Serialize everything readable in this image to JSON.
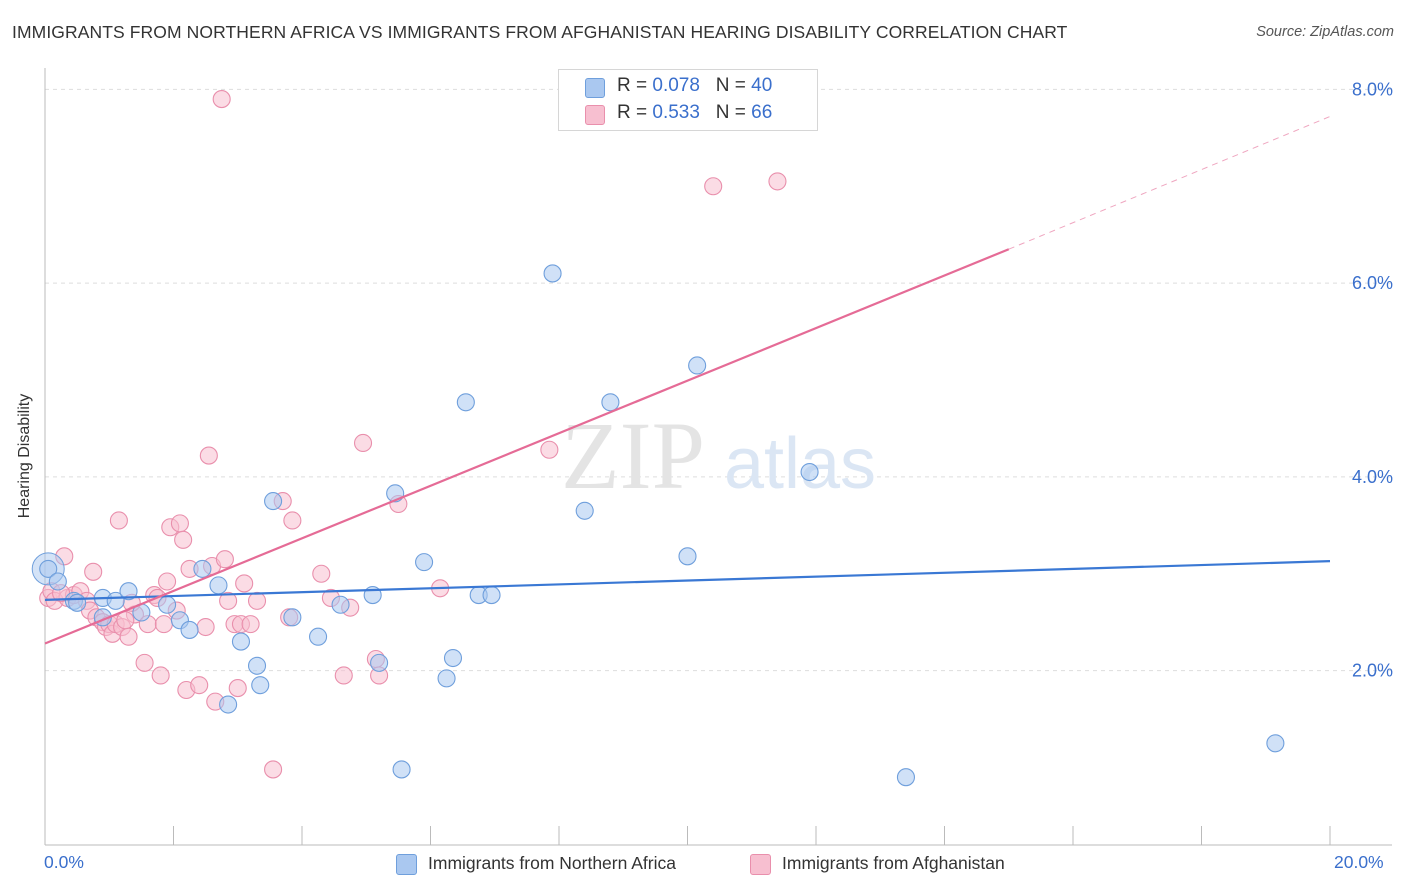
{
  "title": "IMMIGRANTS FROM NORTHERN AFRICA VS IMMIGRANTS FROM AFGHANISTAN HEARING DISABILITY CORRELATION CHART",
  "source": "Source: ZipAtlas.com",
  "watermark": {
    "zip": "ZIP",
    "atlas": "atlas"
  },
  "colors": {
    "blue_fill": "#aac8f0",
    "blue_stroke": "#6f9fdc",
    "blue_line": "#3a78d4",
    "pink_fill": "#f7bfd0",
    "pink_stroke": "#e98fac",
    "pink_line": "#e56b96",
    "axis_text": "#3a6fcc",
    "grid": "#dddddd"
  },
  "legend": {
    "blue": {
      "r_label": "R = ",
      "r_value": "0.078",
      "n_label": "N = ",
      "n_value": "40"
    },
    "pink": {
      "r_label": "R = ",
      "r_value": "0.533",
      "n_label": "N = ",
      "n_value": "66"
    }
  },
  "chart_data": {
    "type": "scatter",
    "title": "IMMIGRANTS FROM NORTHERN AFRICA VS IMMIGRANTS FROM AFGHANISTAN HEARING DISABILITY CORRELATION CHART",
    "xlabel": "",
    "ylabel": "Hearing Disability",
    "xlim": [
      0,
      20
    ],
    "ylim": [
      0.2,
      8.2
    ],
    "x_tick_labels": [
      "0.0%",
      "20.0%"
    ],
    "y_ticks": [
      2,
      4,
      6,
      8
    ],
    "y_tick_labels": [
      "2.0%",
      "4.0%",
      "6.0%",
      "8.0%"
    ],
    "series": [
      {
        "name": "Immigrants from Northern Africa",
        "color": "blue",
        "trend": {
          "x0": 0,
          "y0": 2.73,
          "x1": 20,
          "y1": 3.13
        },
        "points": [
          [
            0.05,
            3.05
          ],
          [
            0.2,
            2.92
          ],
          [
            0.45,
            2.72
          ],
          [
            0.9,
            2.75
          ],
          [
            1.1,
            2.72
          ],
          [
            1.3,
            2.82
          ],
          [
            0.9,
            2.55
          ],
          [
            1.5,
            2.6
          ],
          [
            1.9,
            2.68
          ],
          [
            2.1,
            2.52
          ],
          [
            2.25,
            2.42
          ],
          [
            2.45,
            3.05
          ],
          [
            2.7,
            2.88
          ],
          [
            2.85,
            1.65
          ],
          [
            3.05,
            2.3
          ],
          [
            3.3,
            2.05
          ],
          [
            3.35,
            1.85
          ],
          [
            3.55,
            3.75
          ],
          [
            3.85,
            2.55
          ],
          [
            4.25,
            2.35
          ],
          [
            4.6,
            2.68
          ],
          [
            5.1,
            2.78
          ],
          [
            5.2,
            2.08
          ],
          [
            5.45,
            3.83
          ],
          [
            5.55,
            0.98
          ],
          [
            5.9,
            3.12
          ],
          [
            6.25,
            1.92
          ],
          [
            6.35,
            2.13
          ],
          [
            6.55,
            4.77
          ],
          [
            6.75,
            2.78
          ],
          [
            6.95,
            2.78
          ],
          [
            7.9,
            6.1
          ],
          [
            8.4,
            3.65
          ],
          [
            8.8,
            4.77
          ],
          [
            10.0,
            3.18
          ],
          [
            10.15,
            5.15
          ],
          [
            11.9,
            4.05
          ],
          [
            13.4,
            0.9
          ],
          [
            19.15,
            1.25
          ],
          [
            0.5,
            2.7
          ]
        ]
      },
      {
        "name": "Immigrants from Afghanistan",
        "color": "pink",
        "trend": {
          "x0": 0,
          "y0": 2.28,
          "x1": 15.0,
          "y1": 6.35
        },
        "trend_dashed": {
          "x0": 15.0,
          "y0": 6.35,
          "x1": 20,
          "y1": 7.72
        },
        "points": [
          [
            0.05,
            2.75
          ],
          [
            0.1,
            2.82
          ],
          [
            0.15,
            2.72
          ],
          [
            0.3,
            3.18
          ],
          [
            0.35,
            2.75
          ],
          [
            0.45,
            2.78
          ],
          [
            0.55,
            2.82
          ],
          [
            0.65,
            2.72
          ],
          [
            0.7,
            2.62
          ],
          [
            0.75,
            3.02
          ],
          [
            0.8,
            2.55
          ],
          [
            0.9,
            2.5
          ],
          [
            0.95,
            2.45
          ],
          [
            1.0,
            2.48
          ],
          [
            1.05,
            2.38
          ],
          [
            1.1,
            2.48
          ],
          [
            1.15,
            3.55
          ],
          [
            1.2,
            2.45
          ],
          [
            1.3,
            2.35
          ],
          [
            1.4,
            2.58
          ],
          [
            1.35,
            2.7
          ],
          [
            1.55,
            2.08
          ],
          [
            1.6,
            2.48
          ],
          [
            1.7,
            2.78
          ],
          [
            1.75,
            2.75
          ],
          [
            1.8,
            1.95
          ],
          [
            1.85,
            2.48
          ],
          [
            1.9,
            2.92
          ],
          [
            1.95,
            3.48
          ],
          [
            2.05,
            2.62
          ],
          [
            2.1,
            3.52
          ],
          [
            2.15,
            3.35
          ],
          [
            2.2,
            1.8
          ],
          [
            2.25,
            3.05
          ],
          [
            2.4,
            1.85
          ],
          [
            2.5,
            2.45
          ],
          [
            2.55,
            4.22
          ],
          [
            2.6,
            3.08
          ],
          [
            2.65,
            1.68
          ],
          [
            2.8,
            3.15
          ],
          [
            2.85,
            2.72
          ],
          [
            2.95,
            2.48
          ],
          [
            3.0,
            1.82
          ],
          [
            3.05,
            2.48
          ],
          [
            3.1,
            2.9
          ],
          [
            3.2,
            2.48
          ],
          [
            3.3,
            2.72
          ],
          [
            3.55,
            0.98
          ],
          [
            3.7,
            3.75
          ],
          [
            3.8,
            2.55
          ],
          [
            3.85,
            3.55
          ],
          [
            4.3,
            3.0
          ],
          [
            4.45,
            2.75
          ],
          [
            4.65,
            1.95
          ],
          [
            4.75,
            2.65
          ],
          [
            4.95,
            4.35
          ],
          [
            5.15,
            2.12
          ],
          [
            5.2,
            1.95
          ],
          [
            5.5,
            3.72
          ],
          [
            6.15,
            2.85
          ],
          [
            7.85,
            4.28
          ],
          [
            10.4,
            7.0
          ],
          [
            11.4,
            7.05
          ],
          [
            2.75,
            7.9
          ],
          [
            0.25,
            2.8
          ],
          [
            1.25,
            2.52
          ]
        ]
      }
    ]
  }
}
